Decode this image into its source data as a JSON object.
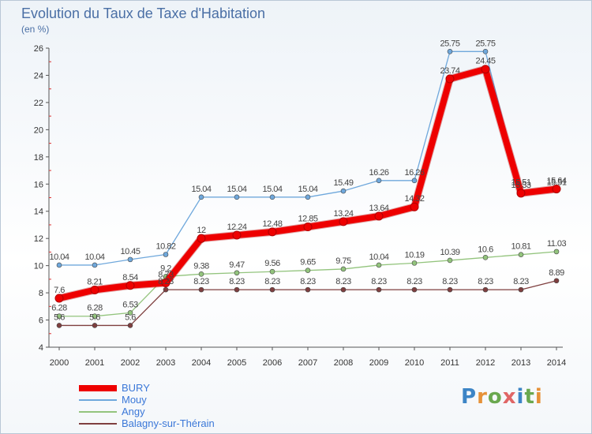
{
  "title": "Evolution du Taux de Taxe d'Habitation",
  "unit_label": "(en %)",
  "brand": "Proxiti",
  "chart_data": {
    "type": "line",
    "title": "Evolution du Taux de Taxe d'Habitation",
    "ylabel": "(en %)",
    "xlabel": "",
    "x": [
      "2000",
      "2001",
      "2002",
      "2003",
      "2004",
      "2005",
      "2006",
      "2007",
      "2008",
      "2009",
      "2010",
      "2011",
      "2012",
      "2013",
      "2014"
    ],
    "ylim": [
      4,
      26
    ],
    "yticks": [
      "4",
      "6",
      "8",
      "10",
      "12",
      "14",
      "16",
      "18",
      "20",
      "22",
      "24",
      "26"
    ],
    "grid": false,
    "legend_position": "bottom-left",
    "series": [
      {
        "name": "BURY",
        "color": "#ee0000",
        "values": [
          7.6,
          8.21,
          8.54,
          8.73,
          12,
          12.24,
          12.48,
          12.85,
          13.24,
          13.64,
          14.32,
          23.74,
          24.45,
          15.33,
          15.64
        ],
        "labels": [
          "7.6",
          "8.21",
          "8.54",
          "8.73",
          "12",
          "12.24",
          "12.48",
          "12.85",
          "13.24",
          "13.64",
          "14.32",
          "23.74",
          "24.45",
          "15.33",
          "15.64"
        ]
      },
      {
        "name": "Mouy",
        "color": "#6fa8dc",
        "values": [
          10.04,
          10.04,
          10.45,
          10.82,
          15.04,
          15.04,
          15.04,
          15.04,
          15.49,
          16.26,
          16.26,
          25.75,
          25.75,
          15.51,
          15.51
        ],
        "labels": [
          "10.04",
          "10.04",
          "10.45",
          "10.82",
          "15.04",
          "15.04",
          "15.04",
          "15.04",
          "15.49",
          "16.26",
          "16.26",
          "25.75",
          "25.75",
          "15.51",
          "15.51"
        ]
      },
      {
        "name": "Angy",
        "color": "#93c47d",
        "values": [
          6.28,
          6.28,
          6.53,
          9.2,
          9.38,
          9.47,
          9.56,
          9.65,
          9.75,
          10.04,
          10.19,
          10.39,
          10.6,
          10.81,
          11.03
        ],
        "labels": [
          "6.28",
          "6.28",
          "6.53",
          "9.2",
          "9.38",
          "9.47",
          "9.56",
          "9.65",
          "9.75",
          "10.04",
          "10.19",
          "10.39",
          "10.6",
          "10.81",
          "11.03"
        ]
      },
      {
        "name": "Balagny-sur-Thérain",
        "color": "#7f3f3f",
        "values": [
          5.6,
          5.6,
          5.6,
          8.23,
          8.23,
          8.23,
          8.23,
          8.23,
          8.23,
          8.23,
          8.23,
          8.23,
          8.23,
          8.23,
          8.89
        ],
        "labels": [
          "5.6",
          "5.6",
          "5.6",
          "8.23",
          "8.23",
          "8.23",
          "8.23",
          "8.23",
          "8.23",
          "8.23",
          "8.23",
          "8.23",
          "8.23",
          "8.23",
          "8.89"
        ]
      }
    ]
  }
}
